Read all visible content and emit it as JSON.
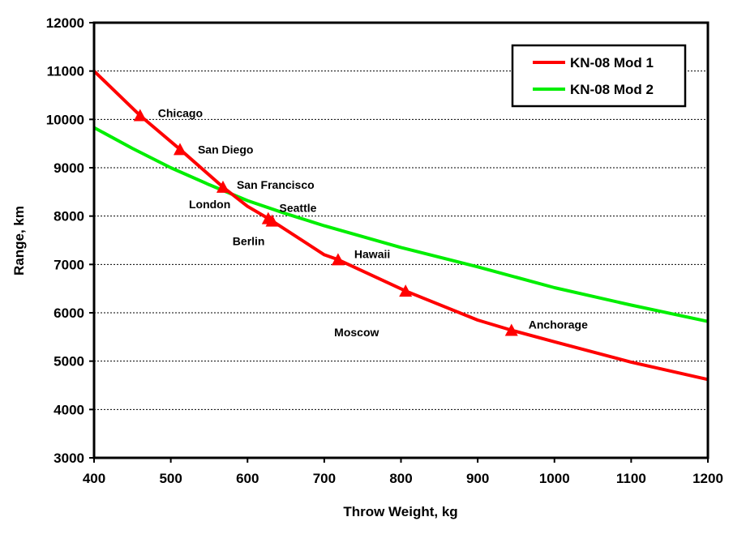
{
  "chart_data": {
    "type": "line",
    "title": "",
    "xlabel": "Throw Weight, kg",
    "ylabel": "Range, km",
    "xlim": [
      400,
      1200
    ],
    "ylim": [
      3000,
      12000
    ],
    "x_ticks": [
      400,
      500,
      600,
      700,
      800,
      900,
      1000,
      1100,
      1200
    ],
    "y_ticks": [
      3000,
      4000,
      5000,
      6000,
      7000,
      8000,
      9000,
      10000,
      11000,
      12000
    ],
    "grid": "horizontal dotted",
    "legend_position": "top-right",
    "series": [
      {
        "name": "KN-08 Mod 1",
        "color": "#ff0000",
        "x": [
          400,
          460,
          512,
          568,
          600,
          627,
          632,
          700,
          718,
          806,
          900,
          944,
          1000,
          1100,
          1200
        ],
        "y": [
          11000,
          10080,
          9380,
          8600,
          8200,
          7950,
          7900,
          7200,
          7100,
          6450,
          5850,
          5640,
          5400,
          4980,
          4620
        ]
      },
      {
        "name": "KN-08 Mod 2",
        "color": "#00ee00",
        "x": [
          400,
          450,
          500,
          550,
          600,
          650,
          700,
          800,
          900,
          1000,
          1100,
          1200
        ],
        "y": [
          9830,
          9400,
          9000,
          8650,
          8320,
          8050,
          7800,
          7350,
          6950,
          6520,
          6160,
          5820
        ]
      }
    ],
    "markers": [
      {
        "name": "Chicago",
        "x": 460,
        "y": 10080
      },
      {
        "name": "San Diego",
        "x": 512,
        "y": 9380
      },
      {
        "name": "San Francisco",
        "x": 568,
        "y": 8600
      },
      {
        "name": "London",
        "x": 568,
        "y": 8600
      },
      {
        "name": "Seattle",
        "x": 632,
        "y": 7900
      },
      {
        "name": "Berlin",
        "x": 627,
        "y": 7950
      },
      {
        "name": "Hawaii",
        "x": 718,
        "y": 7100
      },
      {
        "name": "Moscow",
        "x": 806,
        "y": 6450
      },
      {
        "name": "Anchorage",
        "x": 944,
        "y": 5640
      }
    ],
    "marker_color": "#ff0000"
  }
}
